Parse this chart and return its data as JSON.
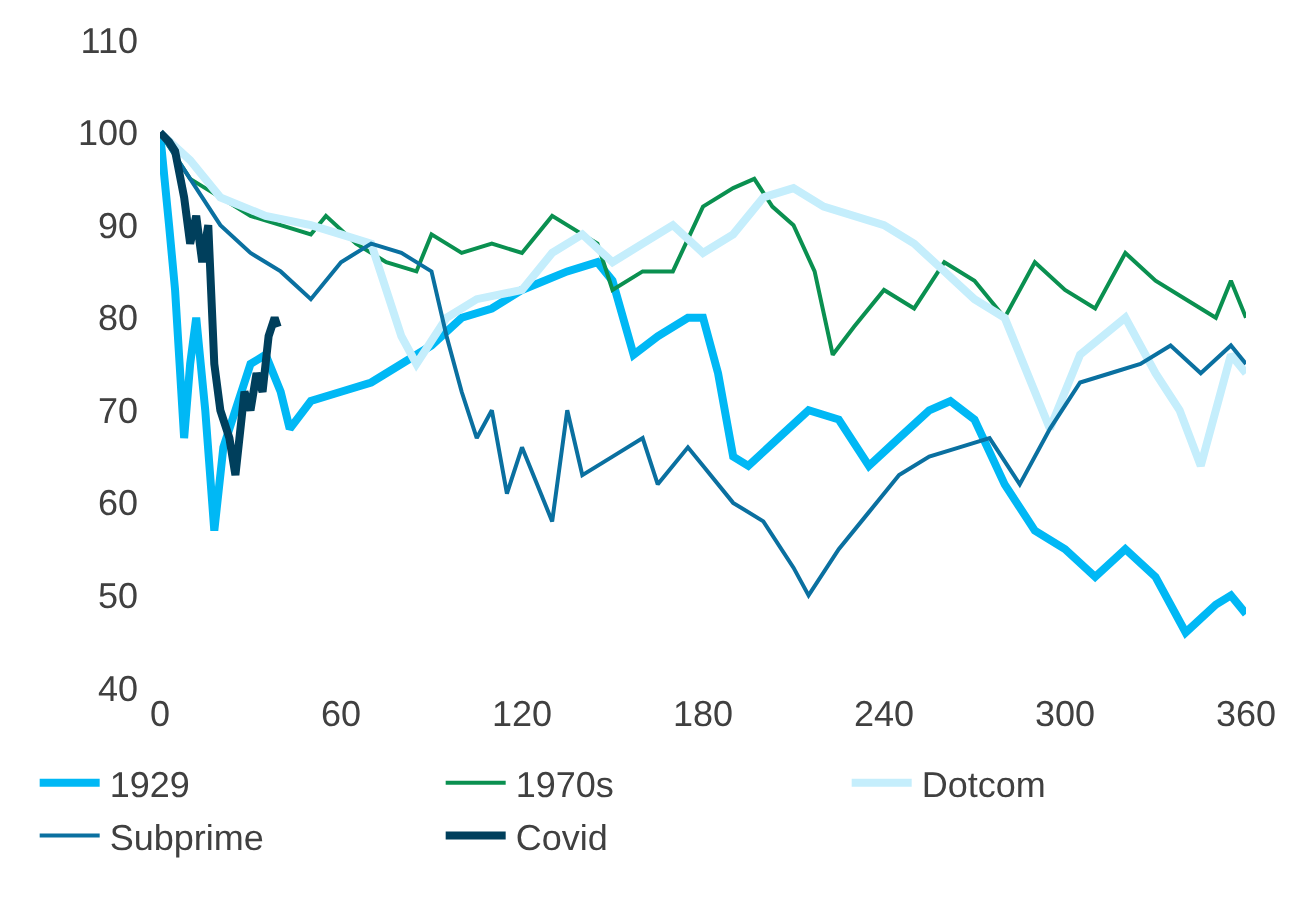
{
  "chart_data": {
    "type": "line",
    "xlim": [
      0,
      360
    ],
    "xticks": [
      0,
      60,
      120,
      180,
      240,
      300,
      360
    ],
    "ylim": [
      40,
      110
    ],
    "yticks": [
      40,
      50,
      60,
      70,
      80,
      90,
      100,
      110
    ],
    "legend": "bottom",
    "marker": "none",
    "line_style": "solid",
    "series": [
      {
        "name": "1929",
        "color": "#00b8f5",
        "x": [
          0,
          3,
          5,
          8,
          10,
          12,
          15,
          18,
          21,
          25,
          30,
          35,
          40,
          43,
          50,
          60,
          70,
          80,
          90,
          100,
          110,
          120,
          135,
          145,
          150,
          157,
          165,
          175,
          180,
          185,
          190,
          195,
          205,
          215,
          225,
          235,
          245,
          255,
          262,
          270,
          280,
          290,
          300,
          310,
          320,
          330,
          340,
          350,
          355,
          360
        ],
        "values": [
          100,
          90,
          83,
          67,
          75,
          80,
          70,
          57,
          66,
          70,
          75,
          76,
          72,
          68,
          71,
          72,
          73,
          75,
          77,
          80,
          81,
          83,
          85,
          86,
          84,
          76,
          78,
          80,
          80,
          74,
          65,
          64,
          67,
          70,
          69,
          64,
          67,
          70,
          71,
          69,
          62,
          57,
          55,
          52,
          55,
          52,
          46,
          49,
          50,
          48
        ]
      },
      {
        "name": "1970s",
        "color": "#0a9050",
        "x": [
          0,
          10,
          20,
          30,
          40,
          50,
          55,
          65,
          75,
          85,
          90,
          100,
          110,
          120,
          130,
          140,
          145,
          150,
          160,
          170,
          180,
          190,
          197,
          203,
          210,
          217,
          223,
          230,
          240,
          250,
          260,
          270,
          280,
          290,
          300,
          310,
          320,
          330,
          340,
          350,
          355,
          360
        ],
        "values": [
          100,
          95,
          93,
          91,
          90,
          89,
          91,
          88,
          86,
          85,
          89,
          87,
          88,
          87,
          91,
          89,
          88,
          83,
          85,
          85,
          92,
          94,
          95,
          92,
          90,
          85,
          76,
          79,
          83,
          81,
          86,
          84,
          80,
          86,
          83,
          81,
          87,
          84,
          82,
          80,
          84,
          80
        ]
      },
      {
        "name": "Dotcom",
        "color": "#c5eefc",
        "x": [
          0,
          10,
          20,
          35,
          50,
          60,
          70,
          80,
          85,
          95,
          105,
          120,
          130,
          140,
          150,
          160,
          170,
          180,
          190,
          200,
          210,
          220,
          240,
          250,
          260,
          270,
          280,
          290,
          295,
          305,
          320,
          330,
          338,
          345,
          355,
          360
        ],
        "values": [
          100,
          97,
          93,
          91,
          90,
          89,
          88,
          78,
          75,
          80,
          82,
          83,
          87,
          89,
          86,
          88,
          90,
          87,
          89,
          93,
          94,
          92,
          90,
          88,
          85,
          82,
          80,
          72,
          68,
          76,
          80,
          74,
          70,
          64,
          76,
          74
        ]
      },
      {
        "name": "Subprime",
        "color": "#0a70a0",
        "x": [
          0,
          10,
          20,
          30,
          40,
          50,
          60,
          70,
          80,
          90,
          95,
          100,
          105,
          110,
          115,
          120,
          125,
          130,
          135,
          140,
          150,
          160,
          165,
          175,
          180,
          190,
          200,
          210,
          215,
          225,
          235,
          245,
          255,
          265,
          275,
          285,
          295,
          305,
          315,
          325,
          335,
          345,
          355,
          360
        ],
        "values": [
          100,
          95,
          90,
          87,
          85,
          82,
          86,
          88,
          87,
          85,
          78,
          72,
          67,
          70,
          61,
          66,
          62,
          58,
          70,
          63,
          65,
          67,
          62,
          66,
          64,
          60,
          58,
          53,
          50,
          55,
          59,
          63,
          65,
          66,
          67,
          62,
          68,
          73,
          74,
          75,
          77,
          74,
          77,
          75
        ]
      },
      {
        "name": "Covid",
        "color": "#003f5c",
        "x": [
          0,
          3,
          5,
          8,
          10,
          12,
          14,
          16,
          18,
          20,
          23,
          25,
          28,
          30,
          32,
          34,
          36,
          38,
          39
        ],
        "values": [
          100,
          99,
          98,
          93,
          88,
          91,
          86,
          90,
          75,
          70,
          67,
          63,
          72,
          70,
          74,
          72,
          78,
          80,
          79
        ]
      }
    ]
  }
}
